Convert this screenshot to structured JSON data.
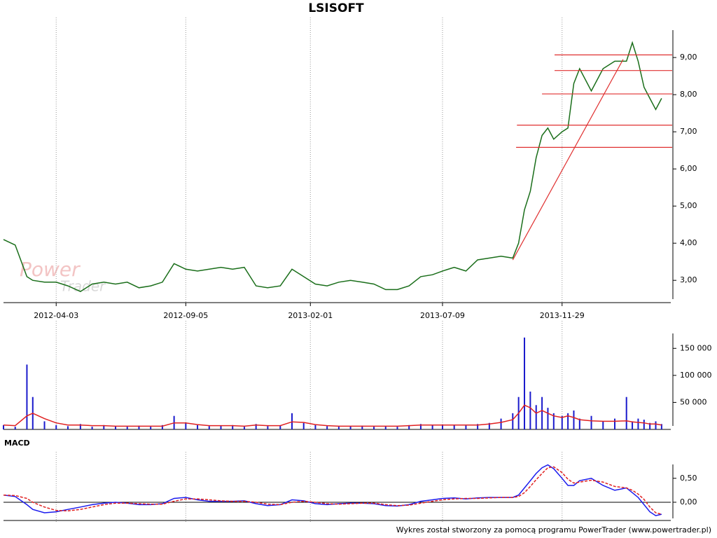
{
  "chart_data": [
    {
      "type": "line",
      "title": "LSISOFT",
      "color": "#1a6e1a",
      "logo": [
        "Power",
        "Trader"
      ],
      "x": [
        "2012-01-31",
        "2012-02-14",
        "2012-02-28",
        "2012-03-06",
        "2012-03-20",
        "2012-04-03",
        "2012-04-17",
        "2012-05-02",
        "2012-05-16",
        "2012-05-30",
        "2012-06-13",
        "2012-06-27",
        "2012-07-11",
        "2012-07-25",
        "2012-08-08",
        "2012-08-22",
        "2012-09-05",
        "2012-09-19",
        "2012-10-03",
        "2012-10-17",
        "2012-10-31",
        "2012-11-14",
        "2012-11-28",
        "2012-12-12",
        "2012-12-27",
        "2013-01-10",
        "2013-01-24",
        "2013-02-07",
        "2013-02-21",
        "2013-03-07",
        "2013-03-21",
        "2013-04-04",
        "2013-04-18",
        "2013-05-02",
        "2013-05-16",
        "2013-05-30",
        "2013-06-13",
        "2013-06-27",
        "2013-07-09",
        "2013-07-23",
        "2013-08-06",
        "2013-08-20",
        "2013-09-03",
        "2013-09-17",
        "2013-10-01",
        "2013-10-08",
        "2013-10-15",
        "2013-10-22",
        "2013-10-29",
        "2013-11-05",
        "2013-11-12",
        "2013-11-19",
        "2013-11-29",
        "2013-12-06",
        "2013-12-13",
        "2013-12-20",
        "2014-01-03",
        "2014-01-17",
        "2014-01-31",
        "2014-02-14",
        "2014-02-21",
        "2014-02-28",
        "2014-03-07",
        "2014-03-14",
        "2014-03-21",
        "2014-03-28"
      ],
      "values": [
        4.1,
        3.95,
        3.1,
        3.0,
        2.95,
        2.95,
        2.85,
        2.7,
        2.9,
        2.95,
        2.9,
        2.95,
        2.8,
        2.85,
        2.95,
        3.45,
        3.3,
        3.25,
        3.3,
        3.35,
        3.3,
        3.35,
        2.85,
        2.8,
        2.85,
        3.3,
        3.1,
        2.9,
        2.85,
        2.95,
        3.0,
        2.95,
        2.9,
        2.75,
        2.75,
        2.85,
        3.1,
        3.15,
        3.25,
        3.35,
        3.25,
        3.55,
        3.6,
        3.65,
        3.6,
        4.0,
        4.9,
        5.4,
        6.3,
        6.9,
        7.1,
        6.8,
        7.0,
        7.1,
        8.3,
        8.7,
        8.1,
        8.7,
        8.9,
        8.9,
        9.4,
        8.9,
        8.2,
        7.9,
        7.6,
        7.9
      ],
      "xlim": [
        "2012-01-31",
        "2014-04-08"
      ],
      "xticks": [
        "2012-04-03",
        "2012-09-05",
        "2013-02-01",
        "2013-07-09",
        "2013-11-29"
      ],
      "ylim": [
        2.4,
        9.7
      ],
      "yticks": [
        {
          "value": 3,
          "label": "3,00"
        },
        {
          "value": 4,
          "label": "4,00"
        },
        {
          "value": 5,
          "label": "5,00"
        },
        {
          "value": 6,
          "label": "6,00"
        },
        {
          "value": 7,
          "label": "7,00"
        },
        {
          "value": 8,
          "label": "8,00"
        },
        {
          "value": 9,
          "label": "9,00"
        }
      ],
      "grid": true,
      "level_color": "#e03030",
      "level_lines": [
        {
          "value": 9.07,
          "from": "2013-11-20"
        },
        {
          "value": 8.65,
          "from": "2013-11-20"
        },
        {
          "value": 8.02,
          "from": "2013-11-05"
        },
        {
          "value": 7.18,
          "from": "2013-10-06"
        },
        {
          "value": 6.58,
          "from": "2013-10-05"
        }
      ],
      "trend_line": {
        "x": [
          "2013-10-01",
          "2014-02-10"
        ],
        "y": [
          3.55,
          8.95
        ]
      }
    },
    {
      "type": "bar",
      "color": "#1a1acc",
      "average_color": "#e02020",
      "x": [
        "2012-01-31",
        "2012-02-14",
        "2012-02-28",
        "2012-03-06",
        "2012-03-20",
        "2012-04-03",
        "2012-04-17",
        "2012-05-02",
        "2012-05-16",
        "2012-05-30",
        "2012-06-13",
        "2012-06-27",
        "2012-07-11",
        "2012-07-25",
        "2012-08-08",
        "2012-08-22",
        "2012-09-05",
        "2012-09-19",
        "2012-10-03",
        "2012-10-17",
        "2012-10-31",
        "2012-11-14",
        "2012-11-28",
        "2012-12-12",
        "2012-12-27",
        "2013-01-10",
        "2013-01-24",
        "2013-02-07",
        "2013-02-21",
        "2013-03-07",
        "2013-03-21",
        "2013-04-04",
        "2013-04-18",
        "2013-05-02",
        "2013-05-16",
        "2013-05-30",
        "2013-06-13",
        "2013-06-27",
        "2013-07-09",
        "2013-07-23",
        "2013-08-06",
        "2013-08-20",
        "2013-09-03",
        "2013-09-17",
        "2013-10-01",
        "2013-10-08",
        "2013-10-15",
        "2013-10-22",
        "2013-10-29",
        "2013-11-05",
        "2013-11-12",
        "2013-11-19",
        "2013-11-29",
        "2013-12-06",
        "2013-12-13",
        "2013-12-20",
        "2014-01-03",
        "2014-01-17",
        "2014-01-31",
        "2014-02-14",
        "2014-02-21",
        "2014-02-28",
        "2014-03-07",
        "2014-03-14",
        "2014-03-21",
        "2014-03-28"
      ],
      "values": [
        8000,
        5000,
        120000,
        60000,
        15000,
        8000,
        6000,
        10000,
        5000,
        8000,
        6000,
        5000,
        7000,
        5000,
        8000,
        25000,
        12000,
        8000,
        6000,
        7000,
        8000,
        5000,
        10000,
        6000,
        7000,
        30000,
        12000,
        8000,
        6000,
        5000,
        6000,
        7000,
        5000,
        6000,
        5000,
        8000,
        10000,
        8000,
        9000,
        8000,
        7000,
        10000,
        12000,
        20000,
        30000,
        60000,
        170000,
        70000,
        45000,
        60000,
        40000,
        30000,
        25000,
        30000,
        35000,
        20000,
        25000,
        15000,
        20000,
        60000,
        15000,
        20000,
        18000,
        12000,
        15000,
        10000
      ],
      "average_values": [
        8000,
        7000,
        25000,
        30000,
        20000,
        12000,
        8000,
        8000,
        7000,
        7000,
        6000,
        6000,
        6000,
        6000,
        6000,
        12000,
        12000,
        9000,
        7000,
        7000,
        7000,
        6000,
        8000,
        7000,
        7000,
        14000,
        13000,
        9000,
        7000,
        6000,
        6000,
        6000,
        6000,
        6000,
        6000,
        7000,
        8000,
        8000,
        8000,
        8000,
        8000,
        8000,
        10000,
        13000,
        18000,
        30000,
        45000,
        40000,
        30000,
        35000,
        30000,
        25000,
        22000,
        25000,
        22000,
        18000,
        16000,
        15000,
        15000,
        16000,
        14000,
        13000,
        12000,
        10000,
        10000,
        8000
      ],
      "xlim": [
        "2012-01-31",
        "2014-04-08"
      ],
      "ylim": [
        0,
        175000
      ],
      "yticks": [
        {
          "value": 50000,
          "label": "50 000"
        },
        {
          "value": 100000,
          "label": "100 000"
        },
        {
          "value": 150000,
          "label": "150 000"
        }
      ],
      "grid": true
    },
    {
      "type": "line",
      "title": "MACD",
      "color": "#1a1aee",
      "signal_color": "#e02020",
      "x": [
        "2012-01-31",
        "2012-02-14",
        "2012-02-28",
        "2012-03-06",
        "2012-03-20",
        "2012-04-03",
        "2012-04-17",
        "2012-05-02",
        "2012-05-16",
        "2012-05-30",
        "2012-06-13",
        "2012-06-27",
        "2012-07-11",
        "2012-07-25",
        "2012-08-08",
        "2012-08-22",
        "2012-09-05",
        "2012-09-19",
        "2012-10-03",
        "2012-10-17",
        "2012-10-31",
        "2012-11-14",
        "2012-11-28",
        "2012-12-12",
        "2012-12-27",
        "2013-01-10",
        "2013-01-24",
        "2013-02-07",
        "2013-02-21",
        "2013-03-07",
        "2013-03-21",
        "2013-04-04",
        "2013-04-18",
        "2013-05-02",
        "2013-05-16",
        "2013-05-30",
        "2013-06-13",
        "2013-06-27",
        "2013-07-09",
        "2013-07-23",
        "2013-08-06",
        "2013-08-20",
        "2013-09-03",
        "2013-09-17",
        "2013-10-01",
        "2013-10-08",
        "2013-10-15",
        "2013-10-22",
        "2013-10-29",
        "2013-11-05",
        "2013-11-12",
        "2013-11-19",
        "2013-11-29",
        "2013-12-06",
        "2013-12-13",
        "2013-12-20",
        "2014-01-03",
        "2014-01-17",
        "2014-01-31",
        "2014-02-14",
        "2014-02-21",
        "2014-02-28",
        "2014-03-07",
        "2014-03-14",
        "2014-03-21",
        "2014-03-28"
      ],
      "values": [
        0.15,
        0.12,
        -0.05,
        -0.15,
        -0.22,
        -0.2,
        -0.15,
        -0.1,
        -0.05,
        -0.02,
        0.0,
        -0.02,
        -0.05,
        -0.05,
        -0.03,
        0.08,
        0.1,
        0.05,
        0.02,
        0.02,
        0.02,
        0.03,
        -0.03,
        -0.07,
        -0.05,
        0.05,
        0.03,
        -0.03,
        -0.05,
        -0.03,
        -0.02,
        -0.02,
        -0.03,
        -0.07,
        -0.08,
        -0.05,
        0.02,
        0.05,
        0.08,
        0.09,
        0.07,
        0.09,
        0.1,
        0.1,
        0.1,
        0.15,
        0.3,
        0.45,
        0.6,
        0.72,
        0.78,
        0.7,
        0.5,
        0.35,
        0.35,
        0.45,
        0.5,
        0.35,
        0.25,
        0.3,
        0.2,
        0.1,
        -0.05,
        -0.2,
        -0.28,
        -0.25
      ],
      "signal_values": [
        0.15,
        0.14,
        0.08,
        0.0,
        -0.1,
        -0.17,
        -0.18,
        -0.15,
        -0.1,
        -0.05,
        -0.02,
        -0.02,
        -0.03,
        -0.04,
        -0.04,
        0.02,
        0.07,
        0.07,
        0.05,
        0.03,
        0.02,
        0.02,
        0.0,
        -0.04,
        -0.05,
        0.0,
        0.02,
        0.0,
        -0.03,
        -0.04,
        -0.03,
        -0.02,
        -0.02,
        -0.05,
        -0.07,
        -0.06,
        -0.02,
        0.02,
        0.05,
        0.07,
        0.08,
        0.08,
        0.09,
        0.1,
        0.1,
        0.12,
        0.2,
        0.33,
        0.47,
        0.6,
        0.72,
        0.74,
        0.62,
        0.48,
        0.4,
        0.42,
        0.46,
        0.42,
        0.33,
        0.3,
        0.25,
        0.17,
        0.06,
        -0.1,
        -0.22,
        -0.25
      ],
      "xlim": [
        "2012-01-31",
        "2014-04-08"
      ],
      "ylim": [
        -0.41,
        0.76
      ],
      "yticks": [
        {
          "value": 0,
          "label": "0,00"
        },
        {
          "value": 0.5,
          "label": "0,50"
        }
      ],
      "grid": true
    }
  ],
  "footer": "Wykres został stworzony za pomocą programu PowerTrader (www.powertrader.pl)"
}
